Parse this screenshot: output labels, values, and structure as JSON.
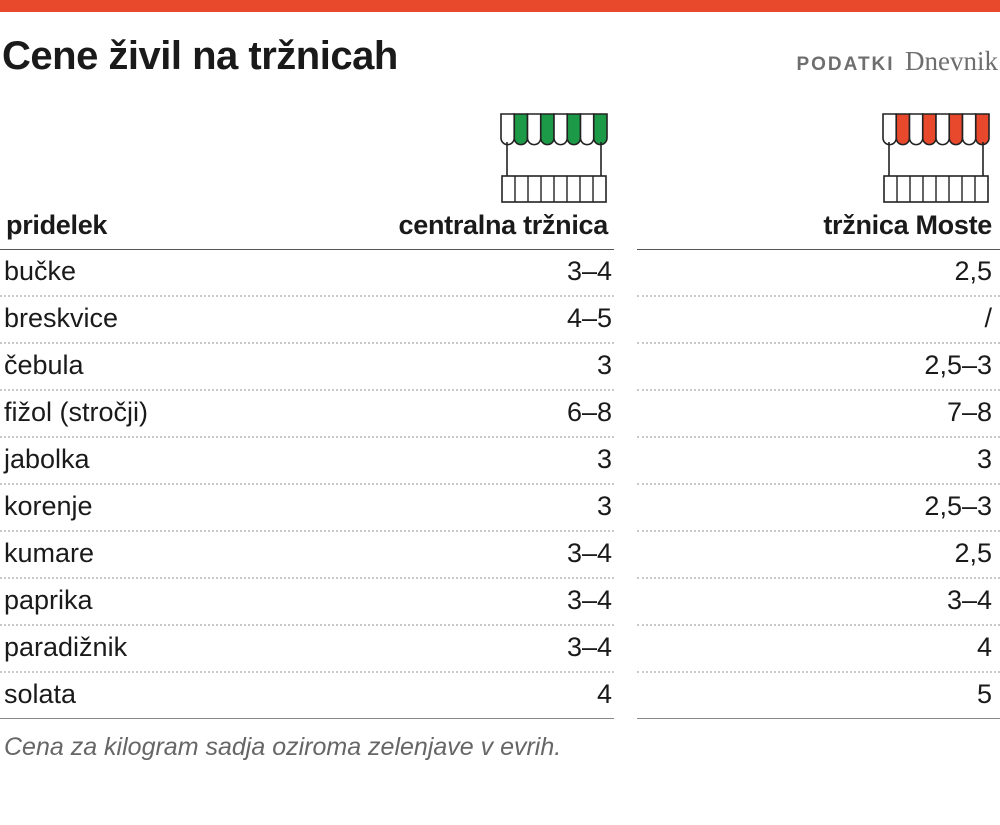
{
  "colors": {
    "accent_bar": "#e8482c",
    "central_awning": "#1d9a47",
    "moste_awning": "#e8482c",
    "text": "#1a1a1a",
    "muted": "#6e6e6e"
  },
  "title": "Cene živil na tržnicah",
  "source": {
    "label": "PODATKI",
    "brand": "Dnevnik"
  },
  "icons": {
    "central": "market-stall-green-icon",
    "moste": "market-stall-red-icon"
  },
  "chart_data": {
    "type": "table",
    "title": "Cene živil na tržnicah",
    "columns": [
      "pridelek",
      "centralna tržnica",
      "tržnica Moste"
    ],
    "rows": [
      [
        "bučke",
        "3–4",
        "2,5"
      ],
      [
        "breskvice",
        "4–5",
        "/"
      ],
      [
        "čebula",
        "3",
        "2,5–3"
      ],
      [
        "fižol (stročji)",
        "6–8",
        "7–8"
      ],
      [
        "jabolka",
        "3",
        "3"
      ],
      [
        "korenje",
        "3",
        "2,5–3"
      ],
      [
        "kumare",
        "3–4",
        "2,5"
      ],
      [
        "paprika",
        "3–4",
        "3–4"
      ],
      [
        "paradižnik",
        "3–4",
        "4"
      ],
      [
        "solata",
        "4",
        "5"
      ]
    ],
    "footnote": "Cena za kilogram sadja oziroma zelenjave v evrih."
  }
}
